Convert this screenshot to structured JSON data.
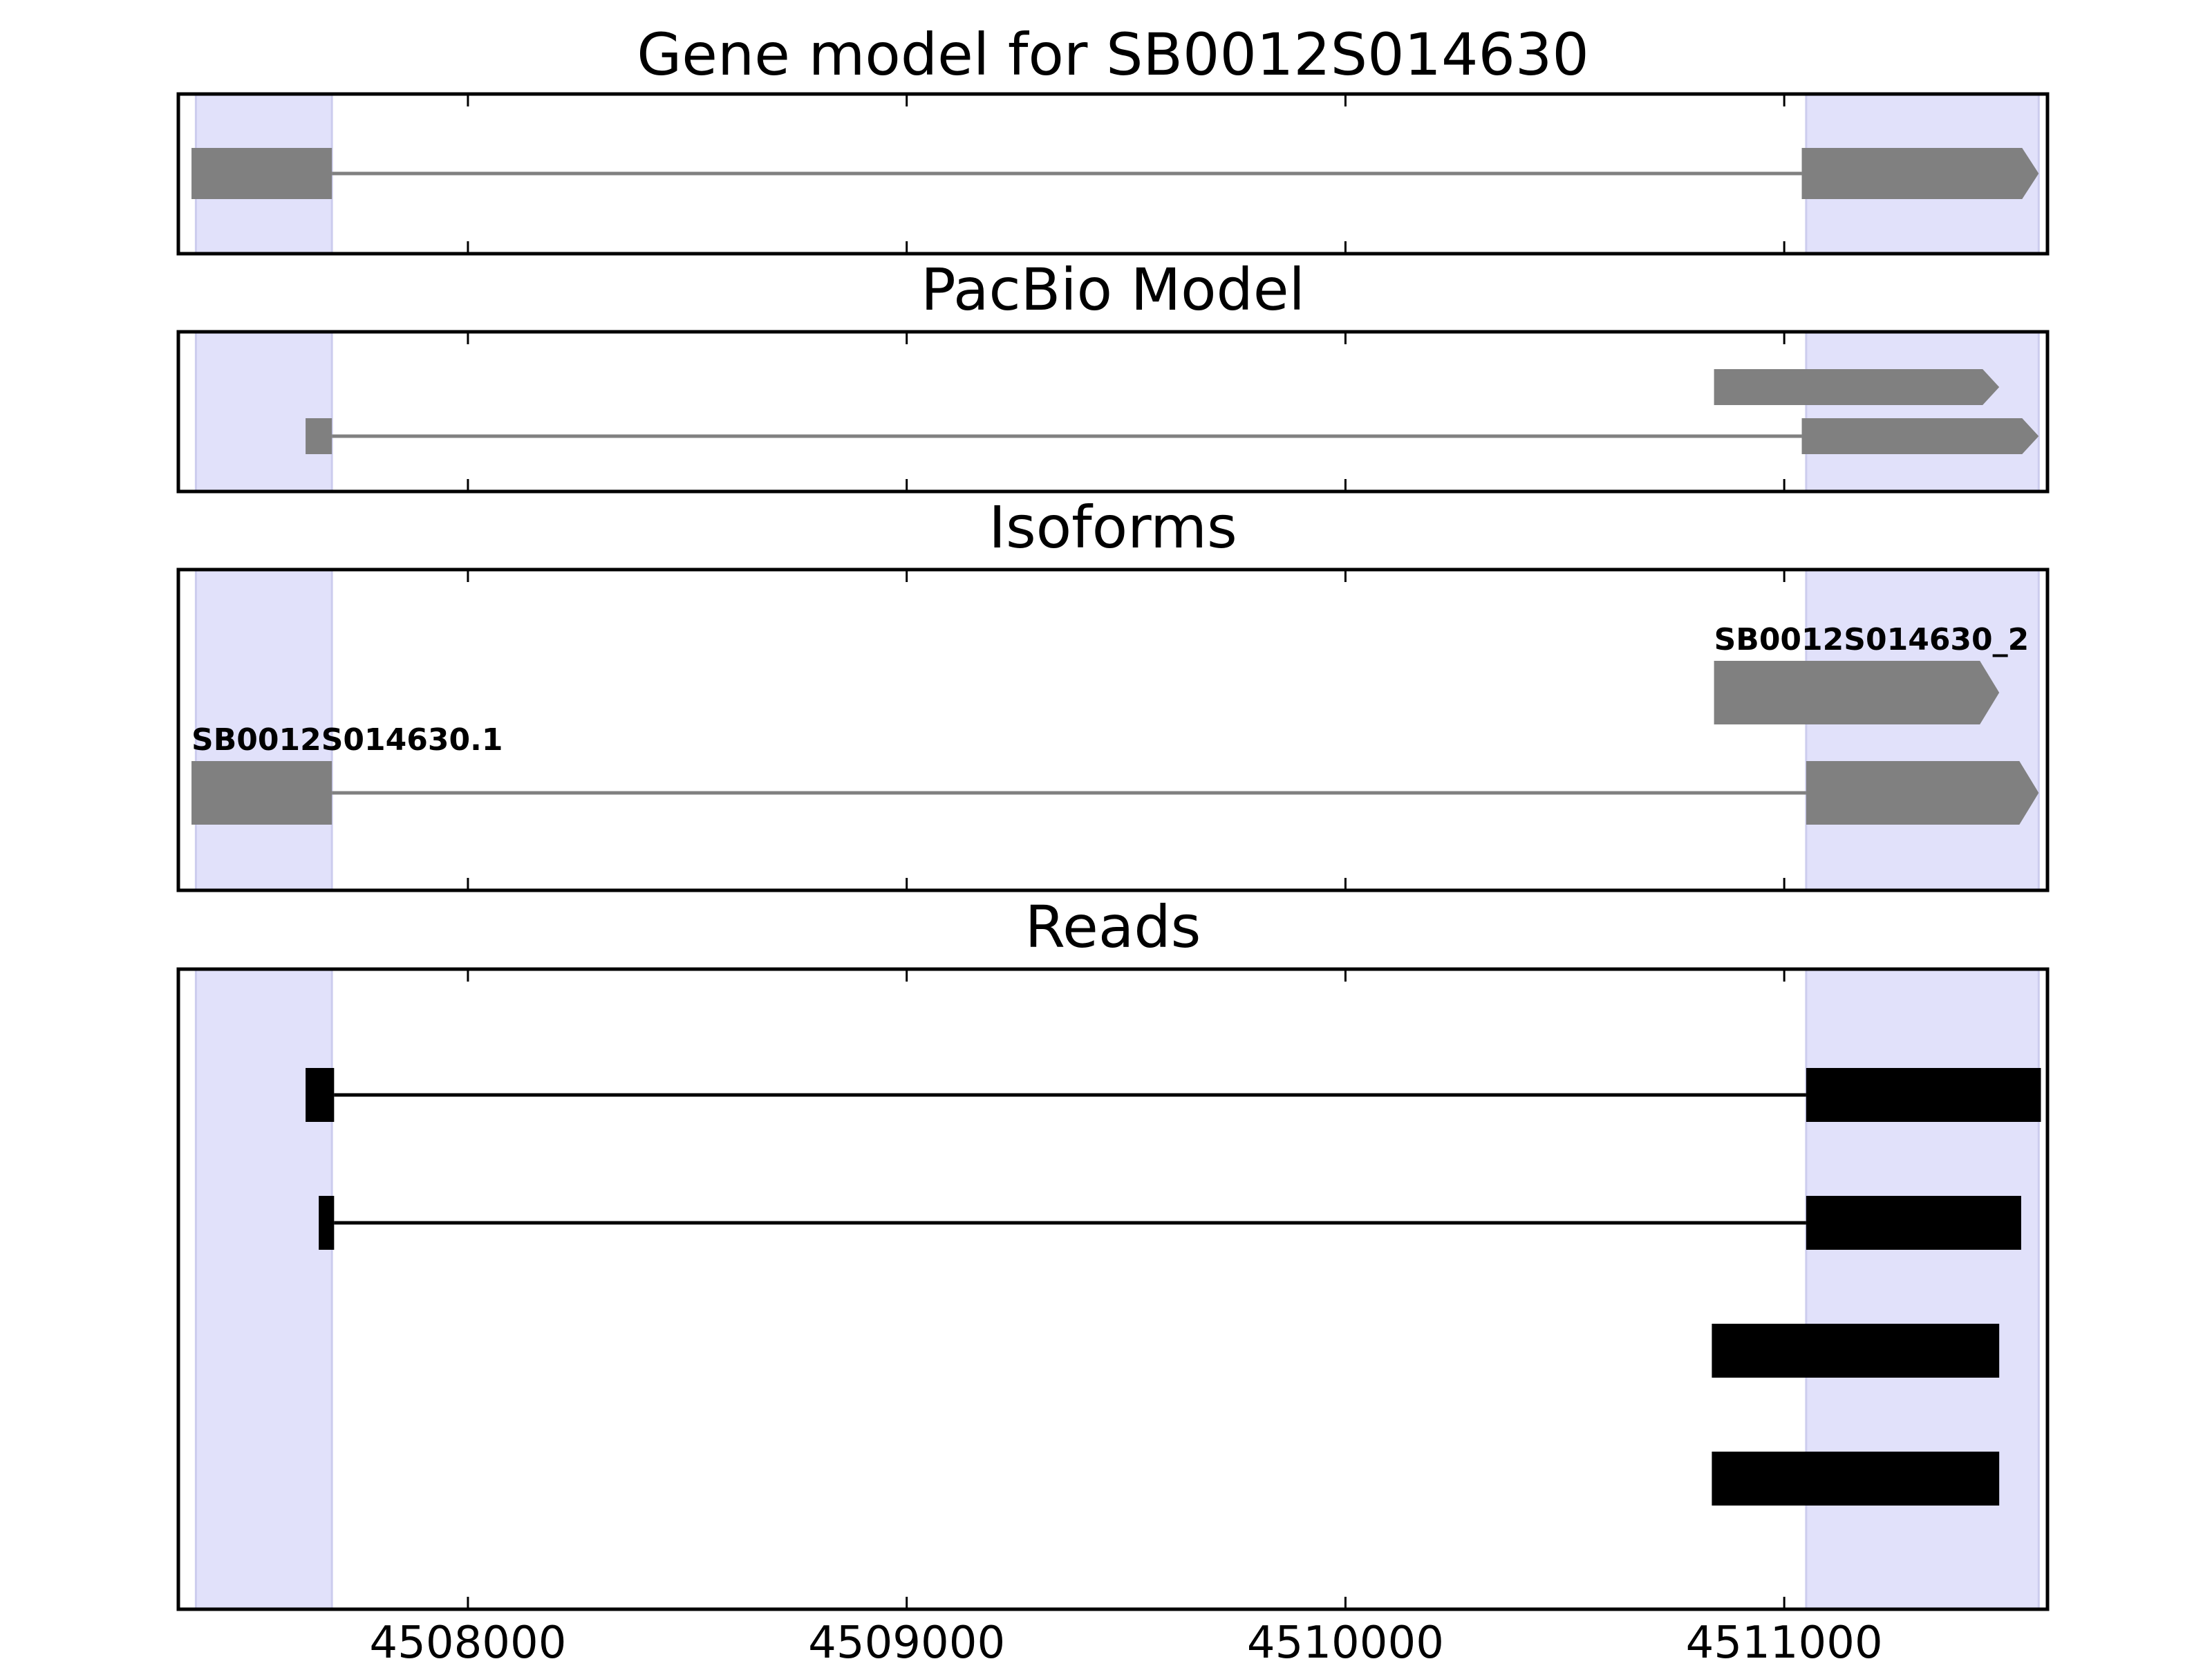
{
  "chart_data": {
    "type": "gene-track",
    "x_range": [
      4507340,
      4511600
    ],
    "x_ticks": [
      4508000,
      4509000,
      4510000,
      4511000
    ],
    "x_tick_labels": [
      "4508000",
      "4509000",
      "4510000",
      "4511000"
    ],
    "shaded_regions": [
      [
        4507380,
        4507690
      ],
      [
        4511050,
        4511580
      ]
    ],
    "colors": {
      "feature": "#808080",
      "read": "#000000",
      "highlight": "#e1e1fa",
      "highlight_edge": "#ccccee"
    },
    "panels": [
      {
        "id": "gene-model",
        "title": "Gene model for SB0012S014630",
        "features": [
          {
            "track": 0,
            "exons": [
              [
                4507370,
                4507690
              ],
              [
                4511040,
                4511580
              ]
            ],
            "strand": "+"
          }
        ]
      },
      {
        "id": "pacbio-model",
        "title": "PacBio Model",
        "features": [
          {
            "track": 0,
            "exons": [
              [
                4507630,
                4507690
              ],
              [
                4511040,
                4511580
              ]
            ],
            "strand": "+"
          },
          {
            "track": 1,
            "exons": [
              [
                4510840,
                4511490
              ]
            ],
            "strand": "+"
          }
        ]
      },
      {
        "id": "isoforms",
        "title": "Isoforms",
        "features": [
          {
            "track": 0,
            "label": "SB0012S014630.1",
            "exons": [
              [
                4507370,
                4507690
              ],
              [
                4511050,
                4511580
              ]
            ],
            "strand": "+"
          },
          {
            "track": 1,
            "label": "SB0012S014630_2",
            "exons": [
              [
                4510840,
                4511490
              ]
            ],
            "strand": "+"
          }
        ]
      },
      {
        "id": "reads",
        "title": "Reads",
        "features": [
          {
            "row": 0,
            "exons": [
              [
                4507630,
                4507695
              ],
              [
                4511050,
                4511585
              ]
            ]
          },
          {
            "row": 1,
            "exons": [
              [
                4507660,
                4507695
              ],
              [
                4511050,
                4511540
              ]
            ]
          },
          {
            "row": 2,
            "exons": [
              [
                4510835,
                4511490
              ]
            ]
          },
          {
            "row": 3,
            "exons": [
              [
                4510835,
                4511490
              ]
            ]
          }
        ]
      }
    ]
  }
}
